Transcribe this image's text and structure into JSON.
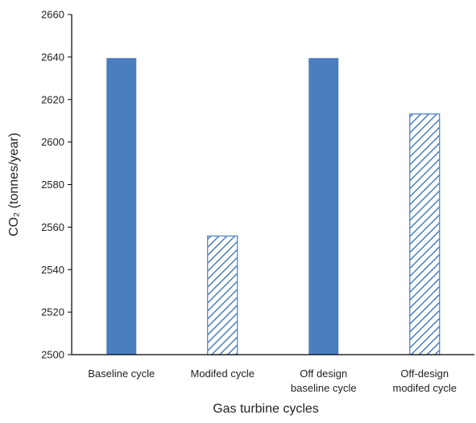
{
  "chart_data": {
    "type": "bar",
    "categories": [
      [
        "Baseline cycle"
      ],
      [
        "Modifed  cycle"
      ],
      [
        "Off design",
        "baseline  cycle"
      ],
      [
        "Off-design",
        "modifed  cycle"
      ]
    ],
    "values": [
      2639.5,
      2555.8,
      2639.5,
      2613.2
    ],
    "bar_styles": [
      "solid",
      "hatched",
      "solid",
      "hatched"
    ],
    "xlabel": "Gas turbine cycles",
    "ylabel": "CO₂ (tonnes/year)",
    "ylim": [
      2500,
      2660
    ],
    "yticks": [
      2500,
      2520,
      2540,
      2560,
      2580,
      2600,
      2620,
      2640,
      2660
    ],
    "grid": false,
    "colors": {
      "bar": "#4a7ebf",
      "hatch": "#4a7ebf",
      "axis": "#000000"
    }
  }
}
